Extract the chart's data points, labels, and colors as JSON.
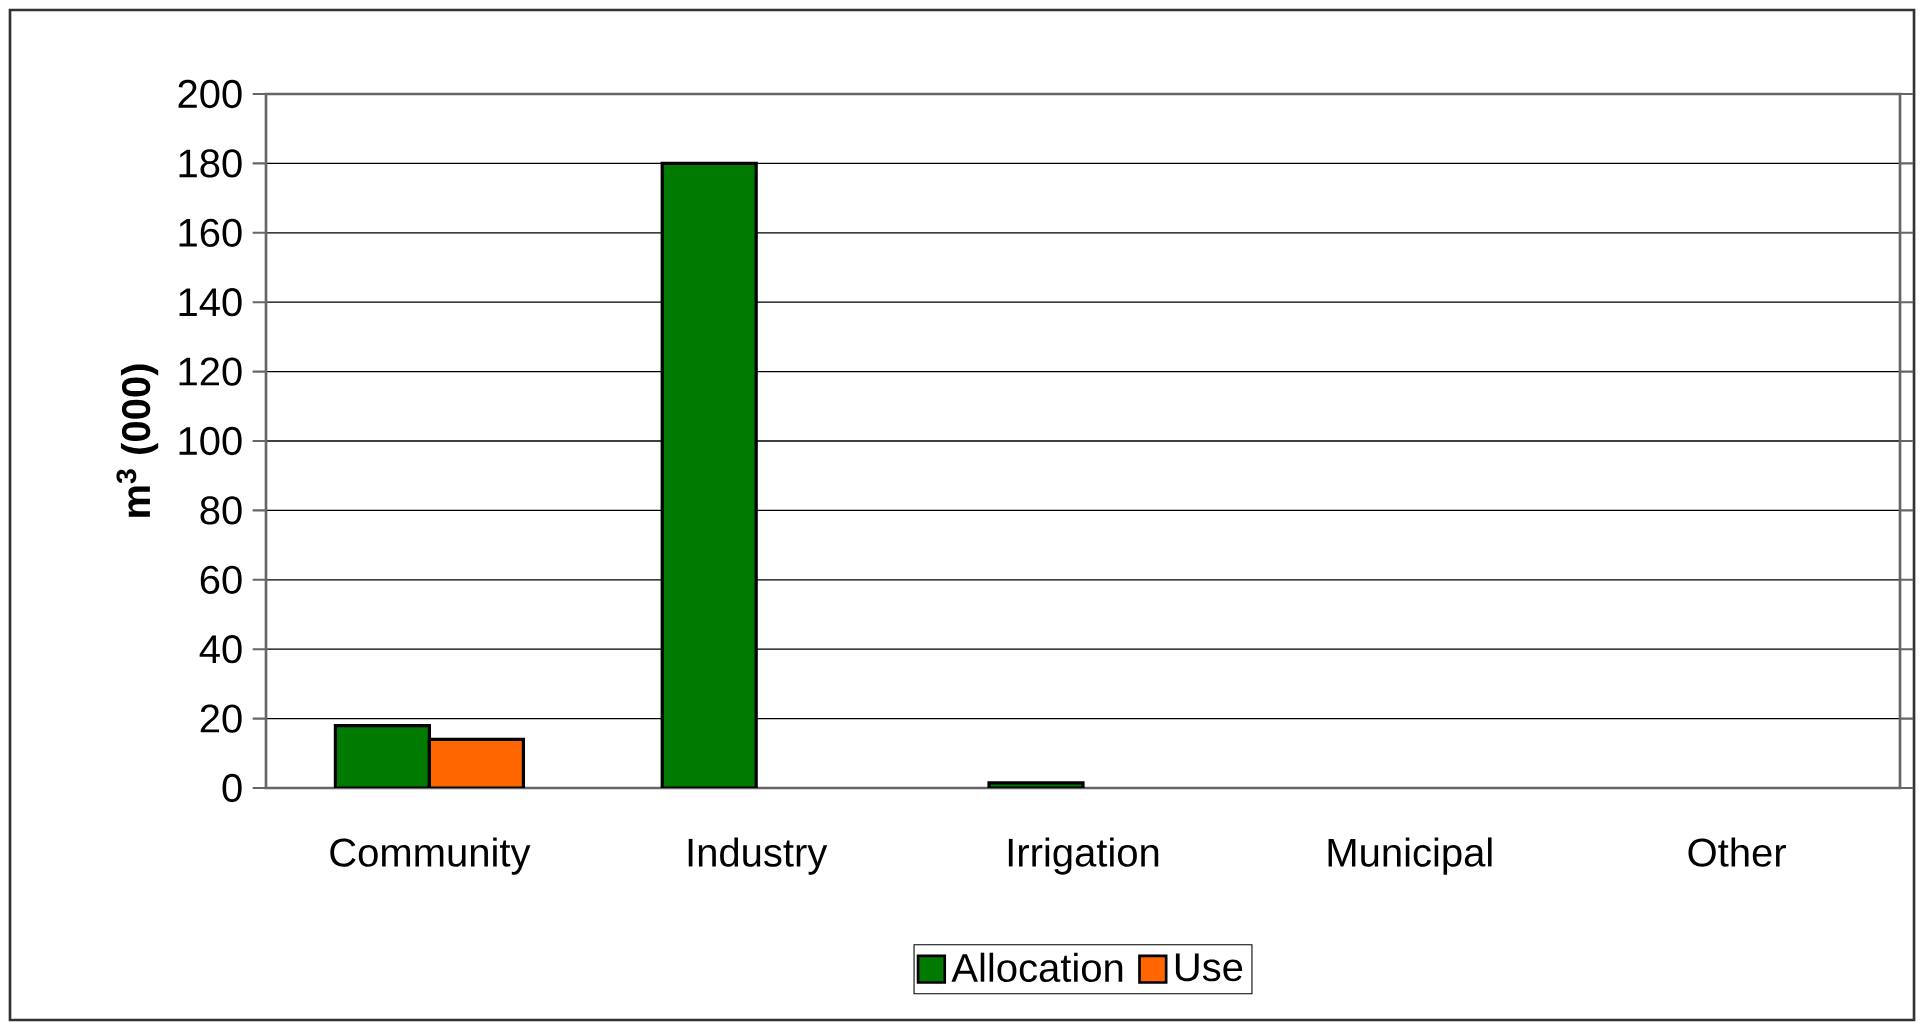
{
  "chart_data": {
    "type": "bar",
    "ylabel": "m$^{3}$  (000)",
    "categories": [
      "Community",
      "Industry",
      "Irrigation",
      "Municipal",
      "Other"
    ],
    "series": [
      {
        "name": "Allocation",
        "color": "#007a00",
        "values": [
          18,
          180,
          1.5,
          null,
          null
        ]
      },
      {
        "name": "Use",
        "color": "#ff6600",
        "values": [
          14,
          null,
          null,
          null,
          null
        ]
      }
    ],
    "ylim": [
      0,
      200
    ],
    "yticks": [
      0,
      20,
      40,
      60,
      80,
      100,
      120,
      140,
      160,
      180,
      200
    ],
    "grid": "y",
    "legend": "bottom"
  }
}
